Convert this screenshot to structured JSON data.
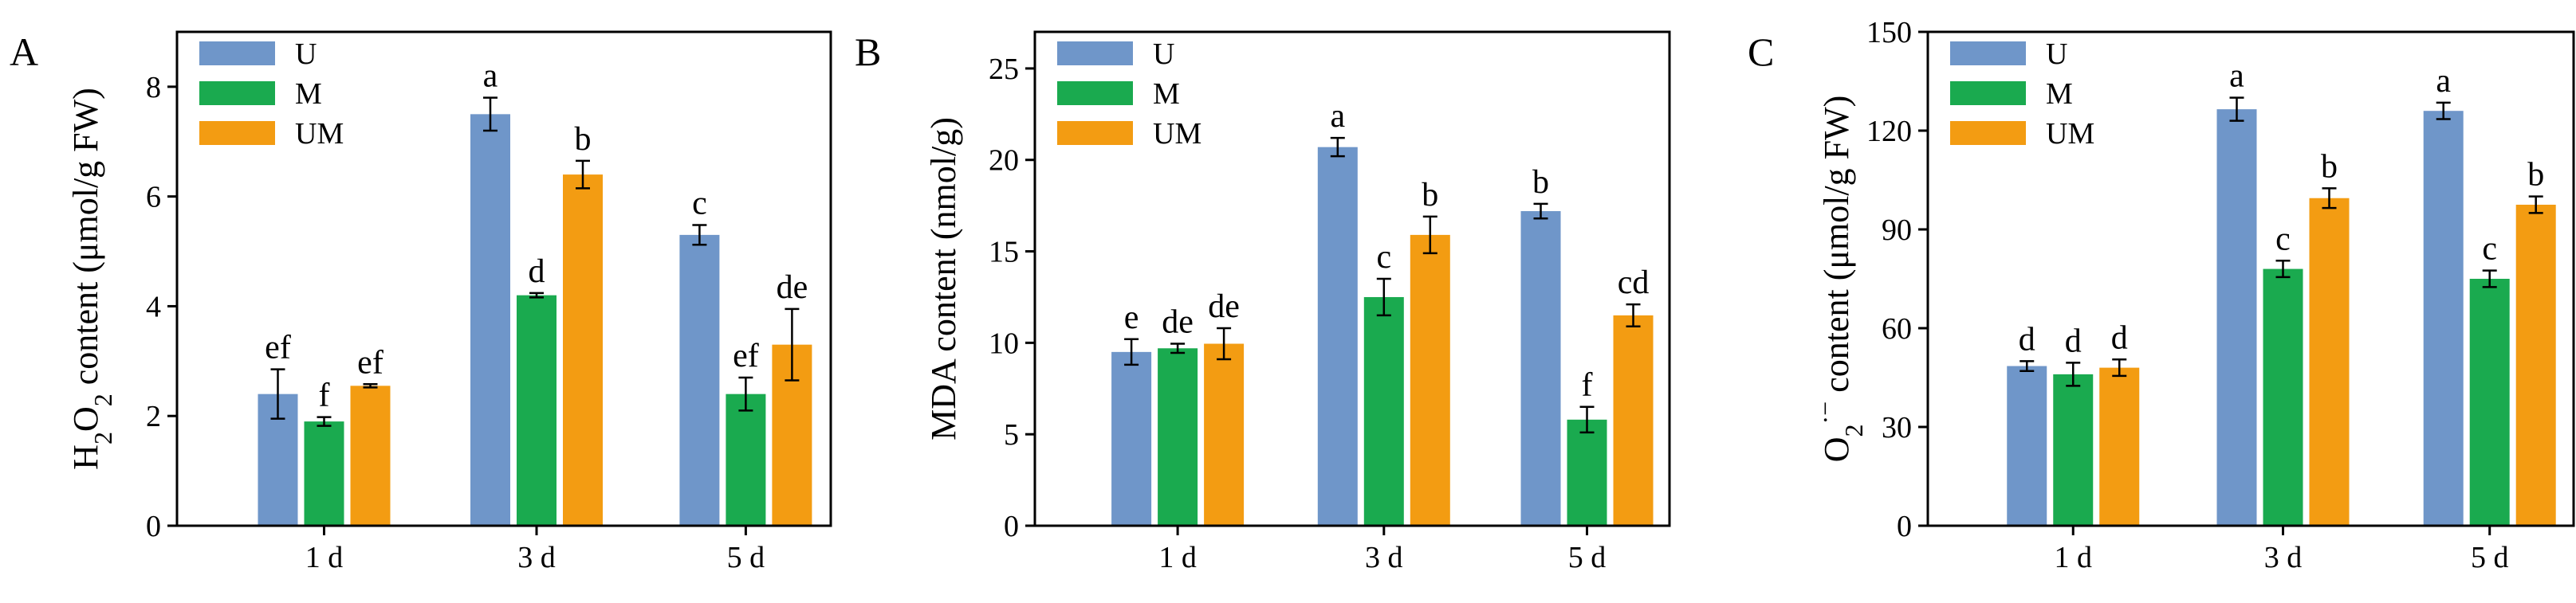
{
  "chart_data": [
    {
      "panel_label": "A",
      "type": "bar",
      "categories": [
        "1 d",
        "3 d",
        "5 d"
      ],
      "series": [
        {
          "name": "U",
          "color": "#6f96c9",
          "values": [
            2.4,
            7.5,
            5.3
          ],
          "errors": [
            0.45,
            0.3,
            0.18
          ],
          "labels": [
            "ef",
            "a",
            "c"
          ]
        },
        {
          "name": "M",
          "color": "#1aaa4f",
          "values": [
            1.9,
            4.2,
            2.4
          ],
          "errors": [
            0.08,
            0.04,
            0.3
          ],
          "labels": [
            "f",
            "d",
            "ef"
          ]
        },
        {
          "name": "UM",
          "color": "#f39c12",
          "values": [
            2.55,
            6.4,
            3.3
          ],
          "errors": [
            0.03,
            0.25,
            0.65
          ],
          "labels": [
            "ef",
            "b",
            "de"
          ]
        }
      ],
      "ylabel_parts": {
        "pre": "H",
        "sub1": "2",
        "mid": "O",
        "sub2": "2",
        "post": " content (μmol/g FW)"
      },
      "ylim": [
        0,
        9
      ],
      "yticks": [
        0,
        2,
        4,
        6,
        8
      ],
      "legend": "top-left",
      "grid": false
    },
    {
      "panel_label": "B",
      "type": "bar",
      "categories": [
        "1 d",
        "3 d",
        "5 d"
      ],
      "series": [
        {
          "name": "U",
          "color": "#6f96c9",
          "values": [
            9.5,
            20.7,
            17.2
          ],
          "errors": [
            0.7,
            0.5,
            0.4
          ],
          "labels": [
            "e",
            "a",
            "b"
          ]
        },
        {
          "name": "M",
          "color": "#1aaa4f",
          "values": [
            9.7,
            12.5,
            5.8
          ],
          "errors": [
            0.25,
            1.0,
            0.7
          ],
          "labels": [
            "de",
            "c",
            "f"
          ]
        },
        {
          "name": "UM",
          "color": "#f39c12",
          "values": [
            9.95,
            15.9,
            11.5
          ],
          "errors": [
            0.85,
            1.0,
            0.6
          ],
          "labels": [
            "de",
            "b",
            "cd"
          ]
        }
      ],
      "ylabel": "MDA content (nmol/g)",
      "ylim": [
        0,
        27
      ],
      "yticks": [
        0,
        5,
        10,
        15,
        20,
        25
      ],
      "legend": "top-left",
      "grid": false
    },
    {
      "panel_label": "C",
      "type": "bar",
      "categories": [
        "1 d",
        "3 d",
        "5 d"
      ],
      "series": [
        {
          "name": "U",
          "color": "#6f96c9",
          "values": [
            48.5,
            126.5,
            126
          ],
          "errors": [
            1.5,
            3.5,
            2.5
          ],
          "labels": [
            "d",
            "a",
            "a"
          ]
        },
        {
          "name": "M",
          "color": "#1aaa4f",
          "values": [
            46,
            78,
            75
          ],
          "errors": [
            3.5,
            2.5,
            2.5
          ],
          "labels": [
            "d",
            "c",
            "c"
          ]
        },
        {
          "name": "UM",
          "color": "#f39c12",
          "values": [
            48,
            99.5,
            97.5
          ],
          "errors": [
            2.5,
            3,
            2.5
          ],
          "labels": [
            "d",
            "b",
            "b"
          ]
        }
      ],
      "ylabel_parts": {
        "pre": "O",
        "sub1": "2",
        "sup": "·−",
        "post": " content (μmol/g FW)"
      },
      "ylim": [
        0,
        150
      ],
      "yticks": [
        0,
        30,
        60,
        90,
        120,
        150
      ],
      "legend": "top-left",
      "grid": false
    }
  ]
}
